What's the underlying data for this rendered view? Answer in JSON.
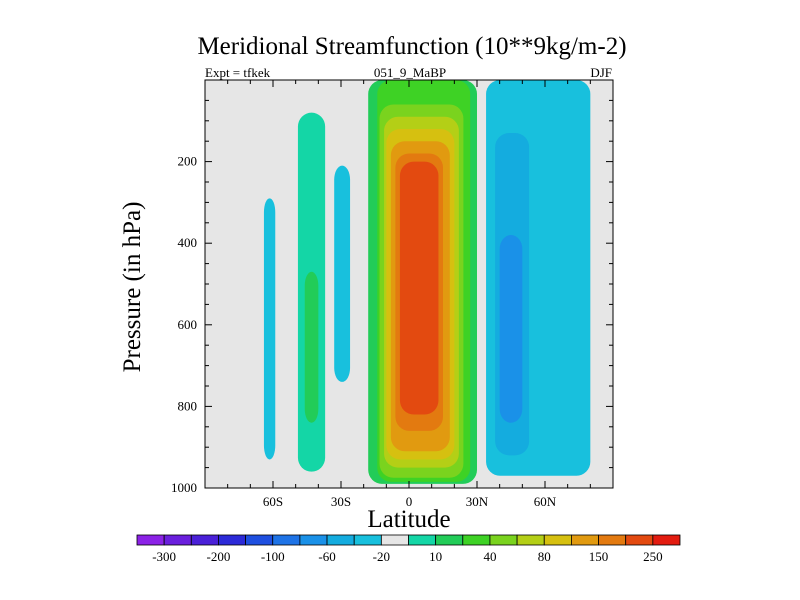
{
  "chart_data": {
    "type": "heatmap",
    "title": "Meridional Streamfunction (10**9kg/m-2)",
    "subtitle_left": "Expt = tfkek",
    "subtitle_center": "051_9_MaBP",
    "subtitle_right": "DJF",
    "xlabel": "Latitude",
    "ylabel": "Pressure (in hPa)",
    "xlim": [
      -90,
      90
    ],
    "ylim": [
      1000,
      0
    ],
    "x_ticks": [
      {
        "value": -60,
        "label": "60S"
      },
      {
        "value": -30,
        "label": "30S"
      },
      {
        "value": 0,
        "label": "0"
      },
      {
        "value": 30,
        "label": "30N"
      },
      {
        "value": 60,
        "label": "60N"
      }
    ],
    "y_ticks": [
      {
        "value": 200,
        "label": "200"
      },
      {
        "value": 400,
        "label": "400"
      },
      {
        "value": 600,
        "label": "600"
      },
      {
        "value": 800,
        "label": "800"
      },
      {
        "value": 1000,
        "label": "1000"
      }
    ],
    "background_color": "#e6e6e6",
    "levels": [
      -300,
      -250,
      -200,
      -150,
      -100,
      -80,
      -60,
      -40,
      -20,
      -10,
      10,
      20,
      40,
      60,
      80,
      100,
      150,
      200,
      250,
      300
    ],
    "colorbar_labels": [
      {
        "value": -300,
        "label": "-300"
      },
      {
        "value": -200,
        "label": "-200"
      },
      {
        "value": -100,
        "label": "-100"
      },
      {
        "value": -60,
        "label": "-60"
      },
      {
        "value": -20,
        "label": "-20"
      },
      {
        "value": 10,
        "label": "10"
      },
      {
        "value": 40,
        "label": "40"
      },
      {
        "value": 80,
        "label": "80"
      },
      {
        "value": 150,
        "label": "150"
      },
      {
        "value": 250,
        "label": "250"
      }
    ],
    "colors": [
      "#8b22e6",
      "#6a1fdd",
      "#4a20d8",
      "#2c2ad8",
      "#1e4fe0",
      "#1e73e6",
      "#1a91e8",
      "#14acdf",
      "#18c0dd",
      "#e6e6e6",
      "#14d6a6",
      "#22cc58",
      "#3ed225",
      "#7ad31e",
      "#b4cf16",
      "#d6c010",
      "#e19a10",
      "#e37a10",
      "#e34a10",
      "#e31c10"
    ],
    "cells": [
      {
        "lat": [
          -64,
          -59
        ],
        "p": [
          290,
          930
        ],
        "color": "#18c0dd"
      },
      {
        "lat": [
          -49,
          -37
        ],
        "p": [
          80,
          960
        ],
        "color": "#14d6a6"
      },
      {
        "lat": [
          -46,
          -40
        ],
        "p": [
          470,
          840
        ],
        "color": "#22cc58"
      },
      {
        "lat": [
          -33,
          -26
        ],
        "p": [
          210,
          740
        ],
        "color": "#18c0dd"
      },
      {
        "lat": [
          -18,
          30
        ],
        "p": [
          0,
          990
        ],
        "color": "#22cc58"
      },
      {
        "lat": [
          -14,
          27
        ],
        "p": [
          0,
          985
        ],
        "color": "#3ed225"
      },
      {
        "lat": [
          -13,
          24
        ],
        "p": [
          60,
          975
        ],
        "color": "#7ad31e"
      },
      {
        "lat": [
          -11,
          22
        ],
        "p": [
          90,
          950
        ],
        "color": "#b4cf16"
      },
      {
        "lat": [
          -10,
          20
        ],
        "p": [
          120,
          930
        ],
        "color": "#d6c010"
      },
      {
        "lat": [
          -8,
          18
        ],
        "p": [
          150,
          910
        ],
        "color": "#e19a10"
      },
      {
        "lat": [
          -6,
          15
        ],
        "p": [
          180,
          860
        ],
        "color": "#e37a10"
      },
      {
        "lat": [
          -4,
          13
        ],
        "p": [
          200,
          820
        ],
        "color": "#e34a10"
      },
      {
        "lat": [
          34,
          80
        ],
        "p": [
          0,
          970
        ],
        "color": "#18c0dd"
      },
      {
        "lat": [
          38,
          53
        ],
        "p": [
          130,
          920
        ],
        "color": "#14acdf"
      },
      {
        "lat": [
          40,
          50
        ],
        "p": [
          380,
          840
        ],
        "color": "#1a91e8"
      }
    ]
  }
}
